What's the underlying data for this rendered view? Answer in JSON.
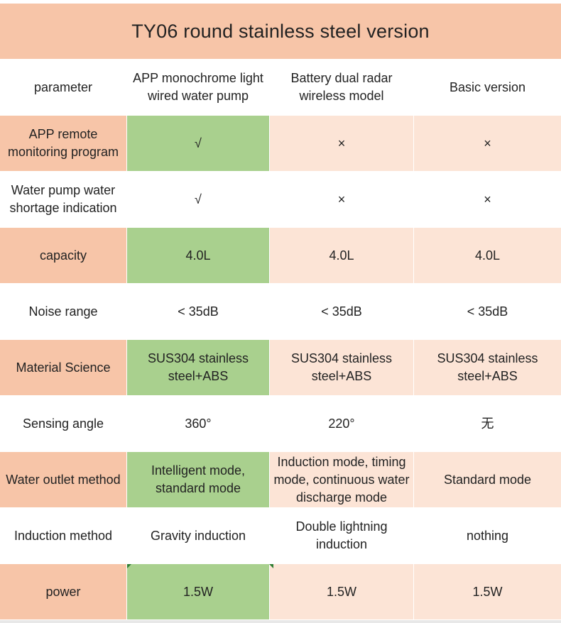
{
  "title": "TY06 round stainless steel version",
  "header": [
    "parameter",
    "APP monochrome light wired water pump",
    "Battery dual radar wireless model",
    "Basic version"
  ],
  "rows": [
    [
      "APP remote monitoring program",
      "√",
      "×",
      "×"
    ],
    [
      "Water pump water shortage indication",
      "√",
      "×",
      "×"
    ],
    [
      "capacity",
      "4.0L",
      "4.0L",
      "4.0L"
    ],
    [
      "Noise range",
      "< 35dB",
      "< 35dB",
      "< 35dB"
    ],
    [
      "Material Science",
      "SUS304 stainless steel+ABS",
      "SUS304 stainless steel+ABS",
      "SUS304 stainless steel+ABS"
    ],
    [
      "Sensing angle",
      "360°",
      "220°",
      "无"
    ],
    [
      "Water outlet method",
      "Intelligent mode, standard mode",
      "Induction mode, timing mode, continuous water discharge mode",
      "Standard mode"
    ],
    [
      "Induction method",
      "Gravity induction",
      "Double lightning induction",
      "nothing"
    ],
    [
      "power",
      "1.5W",
      "1.5W",
      "1.5W"
    ]
  ],
  "colors": {
    "title_bg": "#f7c5a8",
    "label_bg": "#f7c5a8",
    "highlight_bg": "#a9d08e",
    "light_bg": "#fce4d6"
  }
}
